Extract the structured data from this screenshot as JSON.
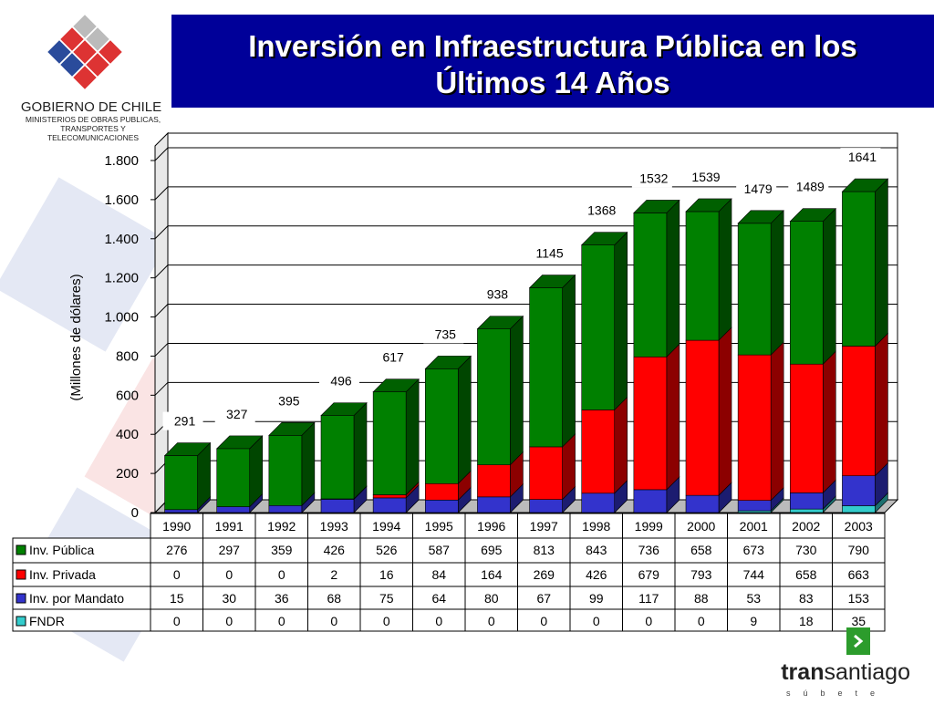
{
  "logo": {
    "name": "GOBIERNO DE CHILE",
    "lines": [
      "MINISTERIOS DE OBRAS PUBLICAS,",
      "TRANSPORTES Y",
      "TELECOMUNICACIONES"
    ]
  },
  "footer": {
    "brand_bold": "tran",
    "brand_rest": "santiago",
    "tagline": "súbete"
  },
  "chart_data": {
    "type": "stacked_bar_3d",
    "title": "Inversión en Infraestructura Pública en los Últimos 14 Años",
    "y_label": "(Millones de dólares)",
    "categories": [
      "1990",
      "1991",
      "1992",
      "1993",
      "1994",
      "1995",
      "1996",
      "1997",
      "1998",
      "1999",
      "2000",
      "2001",
      "2002",
      "2003"
    ],
    "series": [
      {
        "name": "Inv. Pública",
        "color": "#008000",
        "values": [
          276,
          297,
          359,
          426,
          526,
          587,
          695,
          813,
          843,
          736,
          658,
          673,
          730,
          790
        ]
      },
      {
        "name": "Inv. Privada",
        "color": "#ff0000",
        "values": [
          0,
          0,
          0,
          2,
          16,
          84,
          164,
          269,
          426,
          679,
          793,
          744,
          658,
          663
        ]
      },
      {
        "name": "Inv. por Mandato",
        "color": "#3333cc",
        "values": [
          15,
          30,
          36,
          68,
          75,
          64,
          80,
          67,
          99,
          117,
          88,
          53,
          83,
          153
        ]
      },
      {
        "name": "FNDR",
        "color": "#33cccc",
        "values": [
          0,
          0,
          0,
          0,
          0,
          0,
          0,
          0,
          0,
          0,
          0,
          9,
          18,
          35
        ]
      }
    ],
    "totals": [
      291,
      327,
      395,
      496,
      617,
      735,
      938,
      1145,
      1368,
      1532,
      1539,
      1479,
      1489,
      1641
    ],
    "ylim": [
      0,
      1800
    ],
    "yticks": [
      0,
      200,
      400,
      600,
      800,
      {
        "value": 1000,
        "label": "1.000"
      },
      {
        "value": 1200,
        "label": "1.200"
      },
      {
        "value": 1400,
        "label": "1.400"
      },
      {
        "value": 1600,
        "label": "1.600"
      },
      {
        "value": 1800,
        "label": "1.800"
      }
    ],
    "grid": true
  }
}
